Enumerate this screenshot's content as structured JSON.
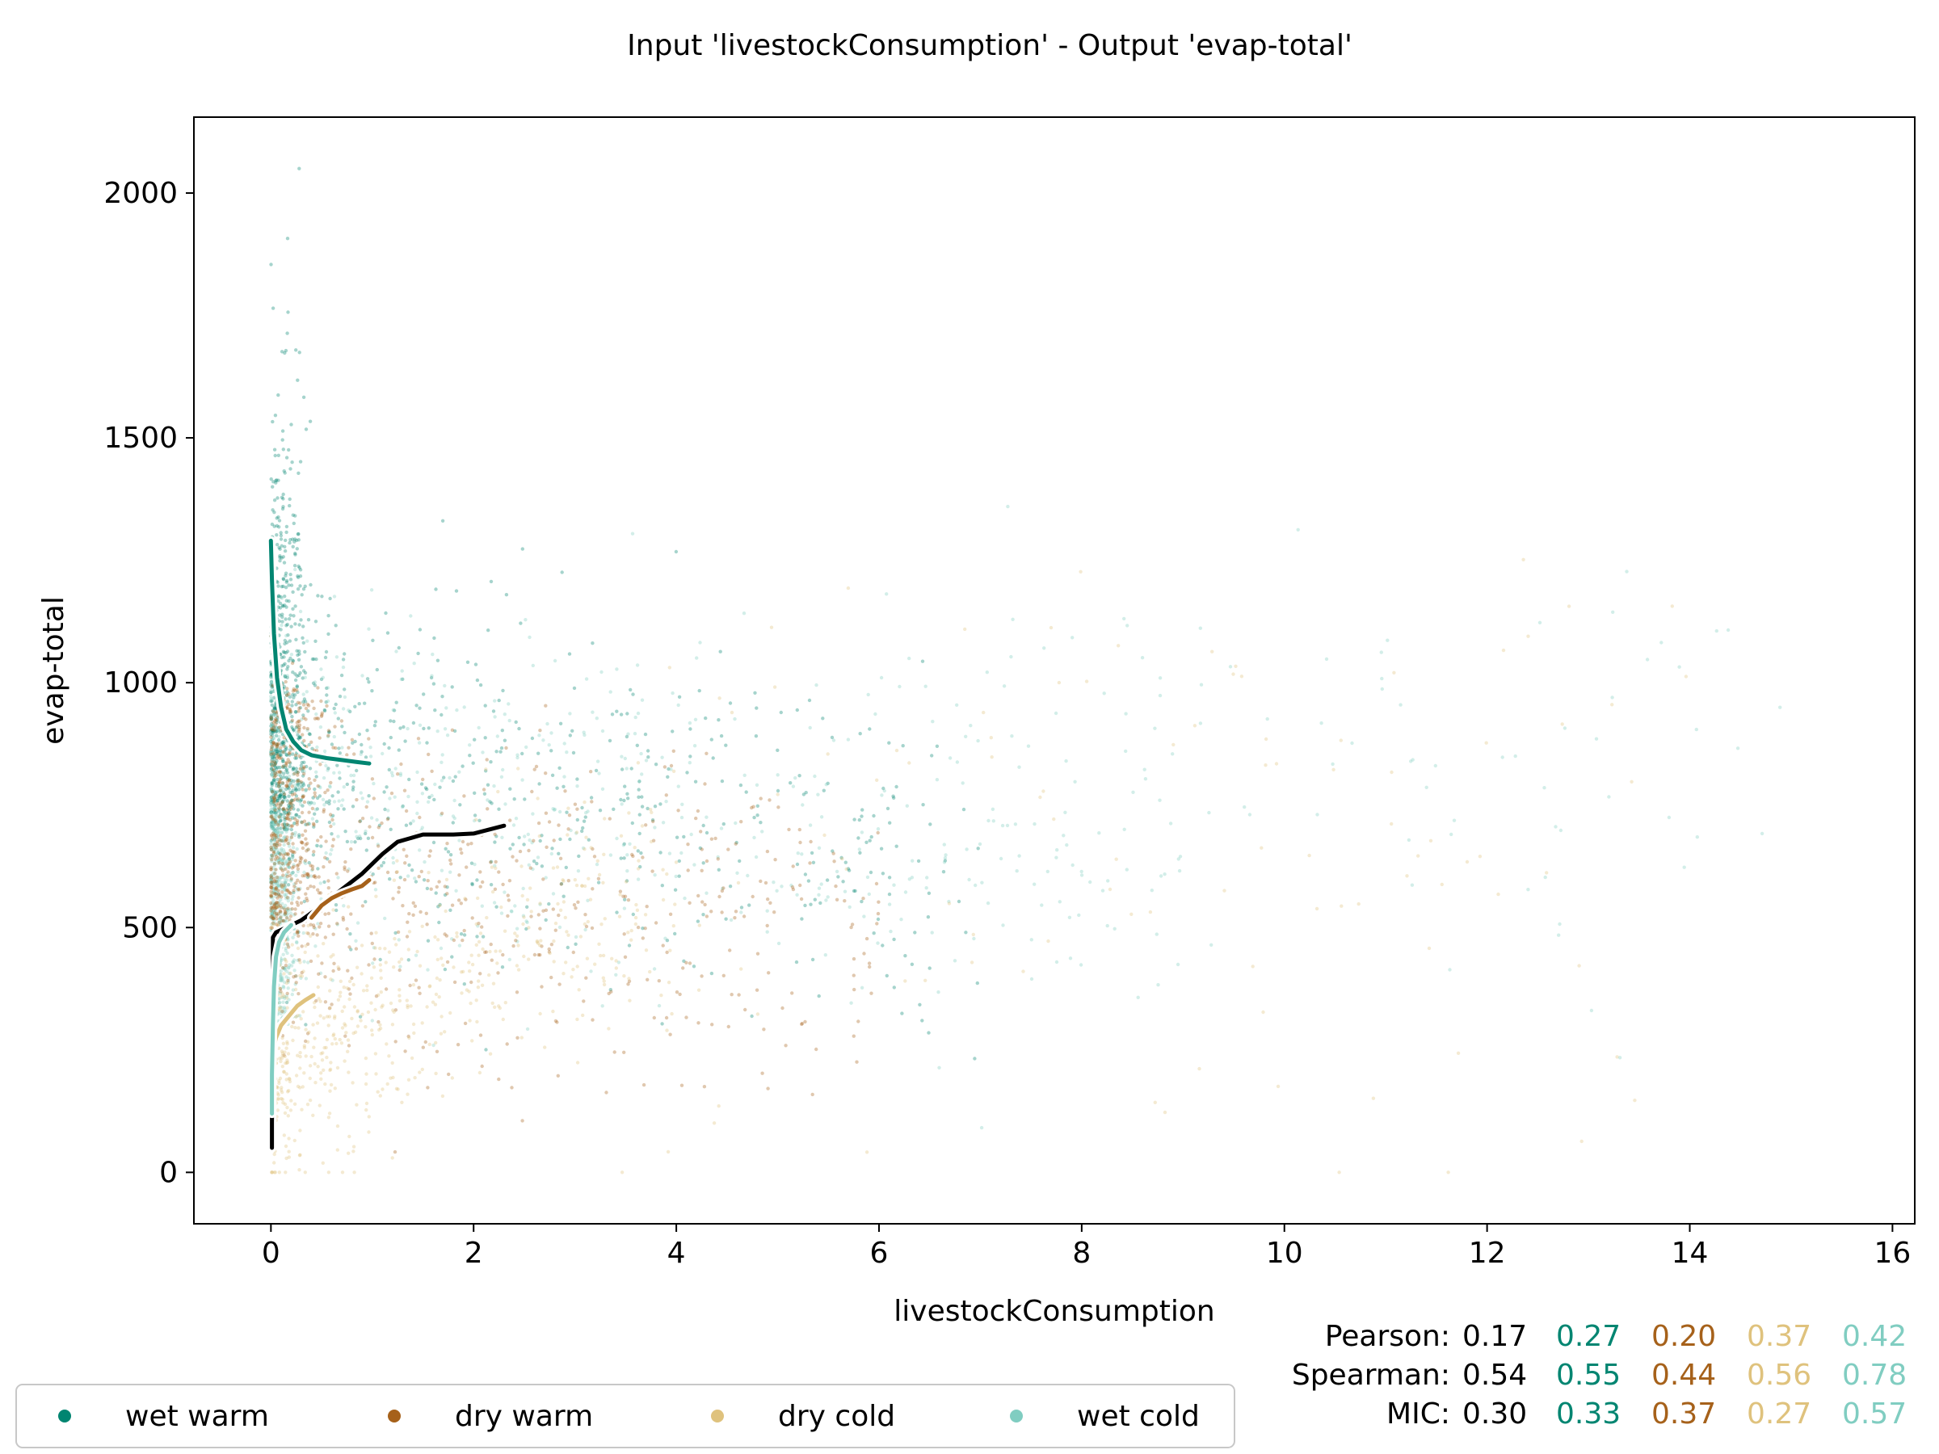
{
  "chart_data": {
    "type": "scatter",
    "title": "Input 'livestockConsumption' - Output 'evap-total'",
    "xlabel": "livestockConsumption",
    "ylabel": "evap-total",
    "xlim": [
      -0.76,
      16.22
    ],
    "ylim": [
      -105,
      2155
    ],
    "x_ticks": [
      0,
      2,
      4,
      6,
      8,
      10,
      12,
      14,
      16
    ],
    "y_ticks": [
      0,
      500,
      1000,
      1500,
      2000
    ],
    "x_tick_labels": [
      "0",
      "2",
      "4",
      "6",
      "8",
      "10",
      "12",
      "14",
      "16"
    ],
    "y_tick_labels": [
      "0",
      "500",
      "1000",
      "1500",
      "2000"
    ],
    "grid": false,
    "legend_position": "bottom-left, below plot",
    "series": [
      {
        "name": "wet warm",
        "color": "#018571",
        "trend": [
          [
            0,
            1290
          ],
          [
            0.01,
            1210
          ],
          [
            0.03,
            1100
          ],
          [
            0.06,
            1010
          ],
          [
            0.1,
            950
          ],
          [
            0.15,
            905
          ],
          [
            0.22,
            880
          ],
          [
            0.3,
            862
          ],
          [
            0.4,
            852
          ],
          [
            0.55,
            846
          ],
          [
            0.7,
            842
          ],
          [
            0.85,
            838
          ],
          [
            0.97,
            835
          ]
        ]
      },
      {
        "name": "dry warm",
        "color": "#a6611a",
        "trend": [
          [
            0.4,
            520
          ],
          [
            0.5,
            545
          ],
          [
            0.6,
            560
          ],
          [
            0.7,
            570
          ],
          [
            0.8,
            578
          ],
          [
            0.9,
            585
          ],
          [
            0.97,
            597
          ]
        ]
      },
      {
        "name": "dry cold",
        "color": "#dfc27d",
        "trend": [
          [
            0.02,
            250
          ],
          [
            0.05,
            275
          ],
          [
            0.1,
            300
          ],
          [
            0.18,
            320
          ],
          [
            0.26,
            340
          ],
          [
            0.34,
            352
          ],
          [
            0.42,
            362
          ]
        ]
      },
      {
        "name": "wet cold",
        "color": "#80cdc1",
        "trend": [
          [
            0.01,
            120
          ],
          [
            0.01,
            200
          ],
          [
            0.02,
            300
          ],
          [
            0.03,
            380
          ],
          [
            0.05,
            440
          ],
          [
            0.08,
            470
          ],
          [
            0.13,
            490
          ],
          [
            0.2,
            505
          ]
        ]
      }
    ],
    "overall_trend": {
      "color": "#000000",
      "points": [
        [
          0.01,
          50
        ],
        [
          0.01,
          100
        ],
        [
          0.02,
          480
        ],
        [
          0.05,
          490
        ],
        [
          0.15,
          500
        ],
        [
          0.3,
          515
        ],
        [
          0.5,
          545
        ],
        [
          0.7,
          578
        ],
        [
          0.9,
          610
        ],
        [
          1.1,
          650
        ],
        [
          1.25,
          675
        ],
        [
          1.5,
          690
        ],
        [
          1.8,
          690
        ],
        [
          2.0,
          692
        ],
        [
          2.3,
          708
        ]
      ]
    },
    "stats": {
      "rows": [
        {
          "label": "Pearson:",
          "overall": "0.17",
          "values": [
            "0.27",
            "0.20",
            "0.37",
            "0.42"
          ]
        },
        {
          "label": "Spearman:",
          "overall": "0.54",
          "values": [
            "0.55",
            "0.44",
            "0.56",
            "0.78"
          ]
        },
        {
          "label": "MIC:",
          "overall": "0.30",
          "values": [
            "0.33",
            "0.37",
            "0.27",
            "0.57"
          ]
        }
      ]
    }
  }
}
